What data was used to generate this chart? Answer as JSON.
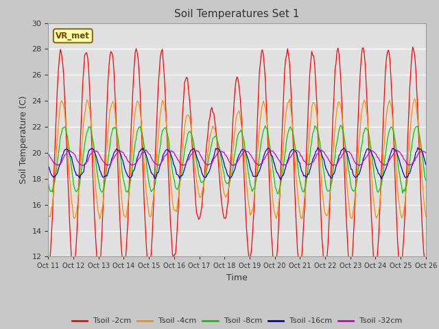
{
  "title": "Soil Temperatures Set 1",
  "xlabel": "Time",
  "ylabel": "Soil Temperature (C)",
  "ylim": [
    12,
    30
  ],
  "yticks": [
    12,
    14,
    16,
    18,
    20,
    22,
    24,
    26,
    28,
    30
  ],
  "annotation_text": "VR_met",
  "colors": {
    "Tsoil -2cm": "#FF0000",
    "Tsoil -4cm": "#FF8C00",
    "Tsoil -8cm": "#00CC00",
    "Tsoil -16cm": "#0000CC",
    "Tsoil -32cm": "#CC00CC"
  },
  "fig_bg_color": "#C8C8C8",
  "plot_bg_color": "#E0E0E0",
  "n_points": 375,
  "mean_temp": 19.5,
  "amplitude_2cm": 8.5,
  "amplitude_4cm": 4.5,
  "amplitude_8cm": 2.5,
  "amplitude_16cm": 1.1,
  "amplitude_32cm": 0.55,
  "phase_shift_4cm": 1.2,
  "phase_shift_8cm": 3.0,
  "phase_shift_16cm": 5.5,
  "phase_shift_32cm": 8.5
}
